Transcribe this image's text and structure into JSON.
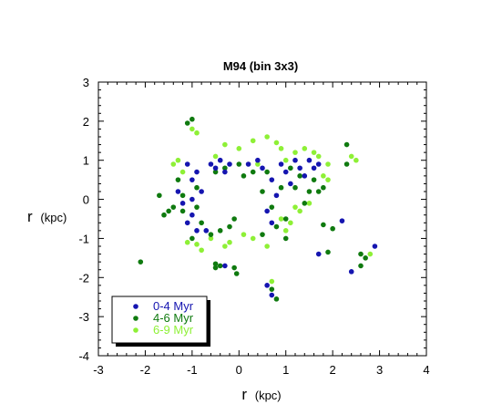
{
  "chart_data": {
    "type": "scatter",
    "title": "M94 (bin 3x3)",
    "xlabel": "r",
    "xlabel_unit": "(kpc)",
    "ylabel": "r",
    "ylabel_unit": "(kpc)",
    "xlim": [
      -3,
      4
    ],
    "ylim": [
      -4,
      3
    ],
    "xticks": [
      "-3",
      "-2",
      "-1",
      "0",
      "1",
      "2",
      "3",
      "4"
    ],
    "yticks": [
      "-4",
      "-3",
      "-2",
      "-1",
      "0",
      "1",
      "2",
      "3"
    ],
    "grid": false,
    "legend_position": "bottom-left",
    "series": [
      {
        "name": "0-4 Myr",
        "color": "#1515b0",
        "points": [
          [
            -1.1,
            0.9
          ],
          [
            -1.0,
            0.5
          ],
          [
            -1.0,
            0.0
          ],
          [
            -1.0,
            -0.4
          ],
          [
            -1.1,
            -0.6
          ],
          [
            -0.9,
            0.7
          ],
          [
            -0.8,
            0.2
          ],
          [
            -0.7,
            -0.8
          ],
          [
            -0.6,
            0.9
          ],
          [
            -0.5,
            0.8
          ],
          [
            -0.4,
            1.0
          ],
          [
            -0.3,
            0.7
          ],
          [
            -0.2,
            0.9
          ],
          [
            0.2,
            0.9
          ],
          [
            0.4,
            1.0
          ],
          [
            0.5,
            0.8
          ],
          [
            0.6,
            -0.3
          ],
          [
            0.7,
            0.5
          ],
          [
            0.7,
            -0.6
          ],
          [
            0.8,
            0.1
          ],
          [
            0.9,
            0.9
          ],
          [
            1.0,
            0.7
          ],
          [
            1.1,
            0.4
          ],
          [
            1.2,
            1.0
          ],
          [
            1.3,
            0.8
          ],
          [
            1.4,
            0.6
          ],
          [
            1.5,
            1.0
          ],
          [
            1.6,
            0.8
          ],
          [
            1.7,
            0.9
          ],
          [
            -1.2,
            -0.1
          ],
          [
            -1.3,
            0.2
          ],
          [
            -0.9,
            -0.8
          ],
          [
            2.2,
            -0.55
          ],
          [
            2.4,
            -1.85
          ],
          [
            2.9,
            -1.2
          ],
          [
            1.7,
            -1.4
          ],
          [
            0.6,
            -2.2
          ],
          [
            0.7,
            -2.45
          ],
          [
            -0.3,
            -1.7
          ]
        ]
      },
      {
        "name": "4-6 Myr",
        "color": "#0f7a0f",
        "points": [
          [
            -1.0,
            2.05
          ],
          [
            -1.1,
            1.95
          ],
          [
            -1.3,
            0.5
          ],
          [
            -1.2,
            0.1
          ],
          [
            -1.2,
            -0.3
          ],
          [
            -1.4,
            -0.2
          ],
          [
            -1.5,
            -0.3
          ],
          [
            -1.6,
            -0.4
          ],
          [
            -1.7,
            0.1
          ],
          [
            -0.9,
            0.3
          ],
          [
            -0.9,
            -0.2
          ],
          [
            -0.8,
            -0.6
          ],
          [
            -0.6,
            -0.9
          ],
          [
            -0.5,
            0.7
          ],
          [
            -0.4,
            -0.8
          ],
          [
            -0.3,
            0.8
          ],
          [
            -0.2,
            -0.7
          ],
          [
            0.0,
            0.9
          ],
          [
            0.1,
            0.6
          ],
          [
            0.3,
            0.7
          ],
          [
            0.5,
            0.2
          ],
          [
            0.6,
            0.7
          ],
          [
            0.7,
            -0.2
          ],
          [
            0.8,
            -0.7
          ],
          [
            0.9,
            0.3
          ],
          [
            1.0,
            -0.5
          ],
          [
            1.1,
            0.8
          ],
          [
            1.2,
            0.3
          ],
          [
            1.3,
            0.6
          ],
          [
            1.4,
            -0.1
          ],
          [
            1.5,
            0.2
          ],
          [
            1.6,
            0.5
          ],
          [
            1.7,
            0.2
          ],
          [
            1.8,
            0.3
          ],
          [
            -0.4,
            -1.7
          ],
          [
            -0.5,
            -1.65
          ],
          [
            -0.1,
            -1.75
          ],
          [
            -0.05,
            -1.9
          ],
          [
            -0.5,
            -1.75
          ],
          [
            2.3,
            1.4
          ],
          [
            2.3,
            0.9
          ],
          [
            2.6,
            -1.4
          ],
          [
            2.7,
            -1.5
          ],
          [
            2.6,
            -1.7
          ],
          [
            2.0,
            -0.75
          ],
          [
            1.8,
            -0.65
          ],
          [
            1.9,
            -1.35
          ],
          [
            -2.1,
            -1.6
          ],
          [
            0.7,
            -2.3
          ],
          [
            0.8,
            -2.55
          ],
          [
            1.0,
            -1.0
          ],
          [
            -1.0,
            -1.0
          ],
          [
            0.5,
            -0.9
          ],
          [
            -0.1,
            -0.5
          ]
        ]
      },
      {
        "name": "6-9 Myr",
        "color": "#8ef036",
        "points": [
          [
            -1.0,
            1.8
          ],
          [
            -0.9,
            1.7
          ],
          [
            -0.3,
            1.4
          ],
          [
            0.3,
            1.5
          ],
          [
            0.6,
            1.6
          ],
          [
            0.8,
            1.45
          ],
          [
            0.9,
            1.3
          ],
          [
            1.0,
            1.0
          ],
          [
            1.2,
            1.2
          ],
          [
            1.4,
            1.3
          ],
          [
            1.6,
            1.2
          ],
          [
            1.7,
            1.1
          ],
          [
            1.8,
            0.6
          ],
          [
            1.9,
            0.9
          ],
          [
            1.1,
            -0.6
          ],
          [
            1.2,
            -0.2
          ],
          [
            1.0,
            -0.8
          ],
          [
            0.9,
            -0.5
          ],
          [
            0.3,
            -1.0
          ],
          [
            0.1,
            -0.9
          ],
          [
            -0.3,
            -1.2
          ],
          [
            -0.6,
            -1.0
          ],
          [
            -0.8,
            -1.3
          ],
          [
            -1.1,
            -1.1
          ],
          [
            -1.3,
            1.0
          ],
          [
            -1.4,
            0.9
          ],
          [
            2.4,
            1.1
          ],
          [
            2.5,
            1.0
          ],
          [
            2.8,
            -1.4
          ],
          [
            0.7,
            -2.1
          ],
          [
            -0.5,
            1.1
          ],
          [
            0.0,
            1.3
          ],
          [
            0.4,
            0.9
          ],
          [
            1.3,
            -0.3
          ],
          [
            0.6,
            -1.2
          ],
          [
            -0.2,
            -1.1
          ],
          [
            -0.9,
            -1.15
          ],
          [
            -1.2,
            0.7
          ],
          [
            1.9,
            0.5
          ],
          [
            1.5,
            -0.1
          ]
        ]
      }
    ]
  }
}
